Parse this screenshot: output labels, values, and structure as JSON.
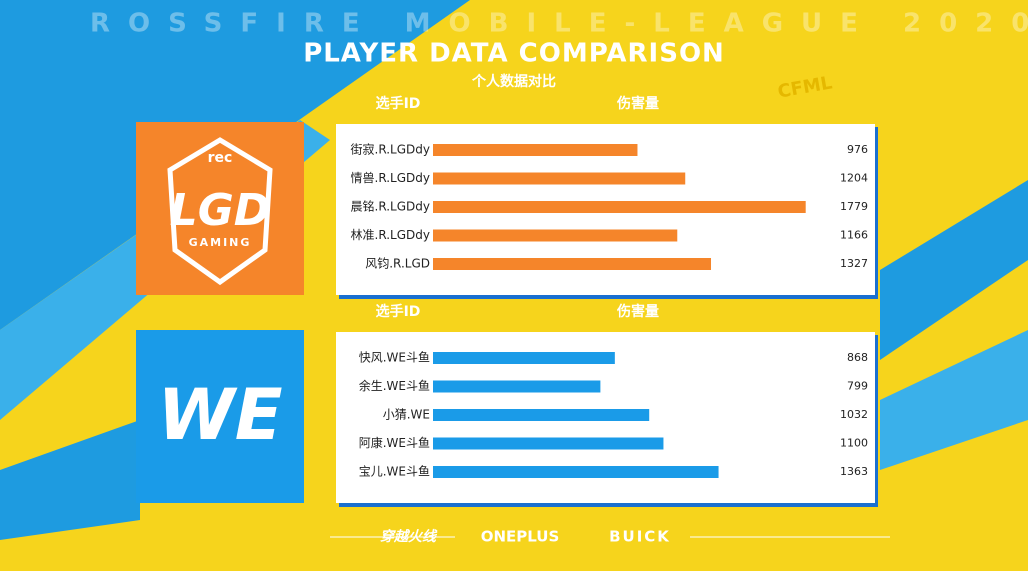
{
  "banner": "ROSSFIRE MOBILE-LEAGUE 2020",
  "title": "PLAYER DATA COMPARISON",
  "subtitle": "个人数据对比",
  "badge": "CFML",
  "sponsors": [
    "穿越火线",
    "ONEPLUS",
    "BUICK"
  ],
  "teams": [
    {
      "logo": "LGD",
      "logo_sub": "GAMING",
      "logo_top": "rec"
    },
    {
      "logo": "WE"
    }
  ],
  "chart_data": [
    {
      "type": "bar",
      "orientation": "horizontal",
      "category_label": "选手ID",
      "value_label": "伤害量",
      "categories": [
        "街寂.R.LGDdy",
        "情兽.R.LGDdy",
        "晨铭.R.LGDdy",
        "林准.R.LGDdy",
        "风钧.R.LGD"
      ],
      "values": [
        976,
        1204,
        1779,
        1166,
        1327
      ],
      "color": "#f5852a",
      "xlim": [
        0,
        2000
      ]
    },
    {
      "type": "bar",
      "orientation": "horizontal",
      "category_label": "选手ID",
      "value_label": "伤害量",
      "categories": [
        "快风.WE斗鱼",
        "余生.WE斗鱼",
        "小猜.WE",
        "阿康.WE斗鱼",
        "宝儿.WE斗鱼"
      ],
      "values": [
        868,
        799,
        1032,
        1100,
        1363
      ],
      "color": "#1a9be8",
      "xlim": [
        0,
        2000
      ]
    }
  ]
}
